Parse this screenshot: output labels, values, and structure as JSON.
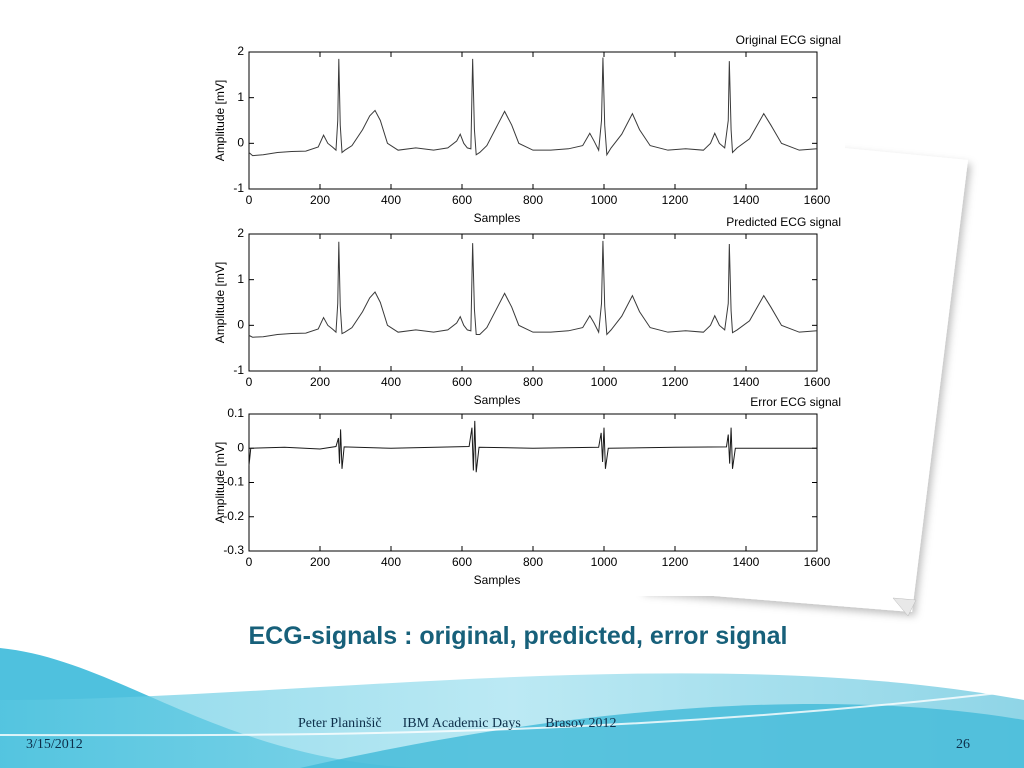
{
  "chart_data": [
    {
      "type": "line",
      "title": "Original ECG signal",
      "x_label": "Samples",
      "y_label": "Amplitude [mV]",
      "x": [
        0,
        10,
        40,
        80,
        120,
        160,
        195,
        210,
        222,
        235,
        245,
        250,
        253,
        257,
        262,
        270,
        290,
        320,
        340,
        355,
        370,
        390,
        420,
        470,
        520,
        560,
        585,
        595,
        605,
        615,
        625,
        630,
        635,
        640,
        650,
        670,
        700,
        720,
        740,
        760,
        800,
        850,
        900,
        940,
        960,
        972,
        985,
        993,
        997,
        1002,
        1008,
        1020,
        1050,
        1080,
        1100,
        1130,
        1180,
        1230,
        1280,
        1300,
        1312,
        1325,
        1340,
        1350,
        1353,
        1358,
        1362,
        1375,
        1410,
        1450,
        1470,
        1500,
        1550,
        1600
      ],
      "series": [
        {
          "color": "#3a3a3a",
          "values": [
            -0.2,
            -0.27,
            -0.25,
            -0.2,
            -0.18,
            -0.17,
            -0.08,
            0.18,
            0.0,
            -0.08,
            -0.15,
            0.5,
            1.85,
            0.4,
            -0.2,
            -0.15,
            -0.05,
            0.3,
            0.6,
            0.72,
            0.5,
            0.0,
            -0.15,
            -0.1,
            -0.15,
            -0.1,
            0.05,
            0.2,
            0.0,
            -0.1,
            -0.12,
            1.85,
            0.3,
            -0.25,
            -0.2,
            -0.05,
            0.4,
            0.7,
            0.4,
            0.0,
            -0.15,
            -0.15,
            -0.12,
            -0.05,
            0.22,
            0.05,
            -0.15,
            0.5,
            1.88,
            0.4,
            -0.25,
            -0.1,
            0.2,
            0.65,
            0.3,
            -0.05,
            -0.15,
            -0.12,
            -0.15,
            0.0,
            0.22,
            0.0,
            -0.1,
            0.5,
            1.8,
            0.3,
            -0.2,
            -0.1,
            0.1,
            0.65,
            0.4,
            0.0,
            -0.15,
            -0.12
          ]
        }
      ],
      "xlim": [
        0,
        1600
      ],
      "ylim": [
        -1,
        2
      ],
      "xticks": [
        0,
        200,
        400,
        600,
        800,
        1000,
        1200,
        1400,
        1600
      ],
      "yticks": [
        -1,
        0,
        1,
        2
      ]
    },
    {
      "type": "line",
      "title": "Predicted ECG signal",
      "x_label": "Samples",
      "y_label": "Amplitude [mV]",
      "x": [
        0,
        10,
        40,
        80,
        120,
        160,
        195,
        210,
        222,
        235,
        245,
        250,
        253,
        257,
        262,
        270,
        290,
        320,
        340,
        355,
        370,
        390,
        420,
        470,
        520,
        560,
        585,
        595,
        605,
        615,
        625,
        630,
        635,
        640,
        650,
        670,
        700,
        720,
        740,
        760,
        800,
        850,
        900,
        940,
        960,
        972,
        985,
        993,
        997,
        1002,
        1008,
        1020,
        1050,
        1080,
        1100,
        1130,
        1180,
        1230,
        1280,
        1300,
        1312,
        1325,
        1340,
        1350,
        1353,
        1358,
        1362,
        1375,
        1410,
        1450,
        1470,
        1500,
        1550,
        1600
      ],
      "series": [
        {
          "color": "#3a3a3a",
          "values": [
            -0.22,
            -0.26,
            -0.25,
            -0.2,
            -0.18,
            -0.17,
            -0.08,
            0.17,
            0.0,
            -0.08,
            -0.15,
            0.48,
            1.83,
            0.42,
            -0.18,
            -0.15,
            -0.05,
            0.3,
            0.6,
            0.73,
            0.5,
            0.0,
            -0.15,
            -0.1,
            -0.15,
            -0.1,
            0.05,
            0.19,
            0.0,
            -0.1,
            -0.12,
            1.8,
            0.35,
            -0.2,
            -0.2,
            -0.05,
            0.4,
            0.7,
            0.4,
            0.0,
            -0.15,
            -0.15,
            -0.12,
            -0.05,
            0.21,
            0.05,
            -0.15,
            0.48,
            1.85,
            0.42,
            -0.2,
            -0.1,
            0.2,
            0.65,
            0.3,
            -0.05,
            -0.15,
            -0.12,
            -0.15,
            0.0,
            0.21,
            0.0,
            -0.1,
            0.48,
            1.78,
            0.32,
            -0.16,
            -0.1,
            0.1,
            0.65,
            0.4,
            0.0,
            -0.15,
            -0.12
          ]
        }
      ],
      "xlim": [
        0,
        1600
      ],
      "ylim": [
        -1,
        2
      ],
      "xticks": [
        0,
        200,
        400,
        600,
        800,
        1000,
        1200,
        1400,
        1600
      ],
      "yticks": [
        -1,
        0,
        1,
        2
      ]
    },
    {
      "type": "line",
      "title": "Error ECG signal",
      "x_label": "Samples",
      "y_label": "Amplitude [mV]",
      "x": [
        0,
        5,
        100,
        200,
        245,
        252,
        255,
        258,
        262,
        268,
        400,
        620,
        628,
        632,
        636,
        640,
        648,
        800,
        985,
        992,
        996,
        1000,
        1004,
        1012,
        1200,
        1345,
        1350,
        1354,
        1358,
        1362,
        1370,
        1600
      ],
      "series": [
        {
          "color": "#1a1a1a",
          "values": [
            -0.05,
            0,
            0.003,
            -0.002,
            0.005,
            0.03,
            -0.045,
            0.055,
            -0.06,
            0.004,
            0,
            0.005,
            0.06,
            -0.065,
            0.08,
            -0.07,
            0.003,
            0,
            0.003,
            0.045,
            -0.04,
            0.06,
            -0.06,
            0,
            0.003,
            0.004,
            0.04,
            -0.045,
            0.06,
            -0.06,
            0,
            0
          ]
        }
      ],
      "xlim": [
        0,
        1600
      ],
      "ylim": [
        -0.3,
        0.1
      ],
      "xticks": [
        0,
        200,
        400,
        600,
        800,
        1000,
        1200,
        1400,
        1600
      ],
      "yticks": [
        -0.3,
        -0.2,
        -0.1,
        0,
        0.1
      ]
    }
  ],
  "slide": {
    "caption": "ECG-signals : original, predicted, error signal",
    "date": "3/15/2012",
    "footer": "Peter Planinšič      IBM Academic Days       Brasov 2012",
    "page_number": "26"
  }
}
